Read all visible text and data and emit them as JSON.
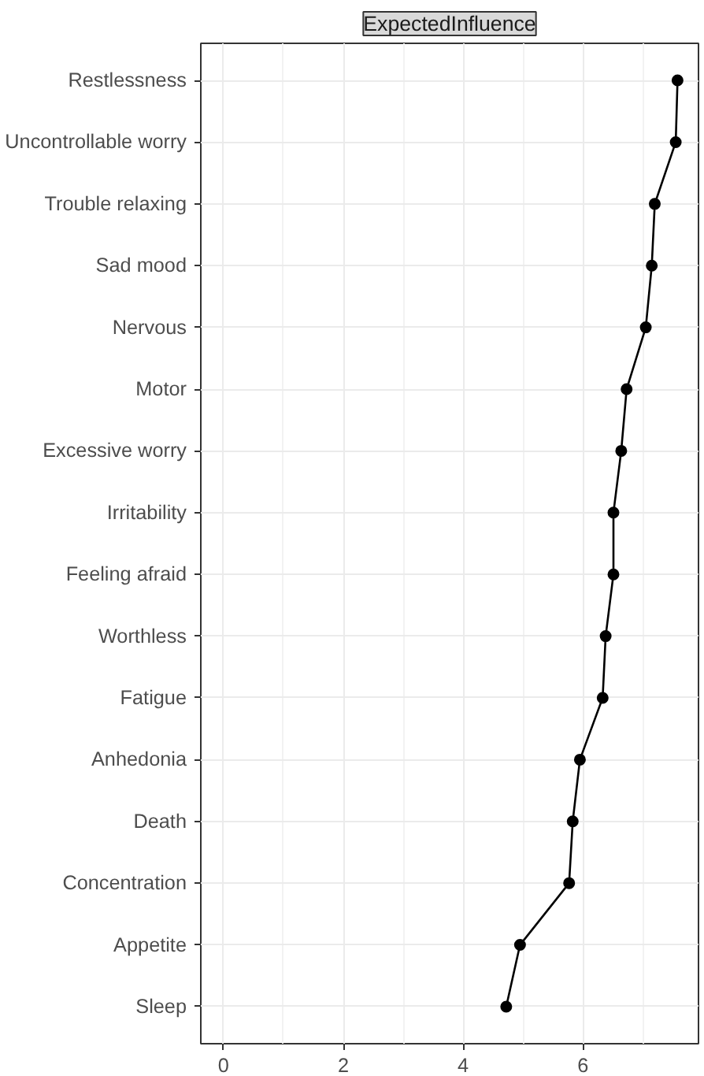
{
  "chart_data": {
    "type": "line",
    "title": "ExpectedInfluence",
    "orientation": "horizontal",
    "categories": [
      "Restlessness",
      "Uncontrollable worry",
      "Trouble relaxing",
      "Sad mood",
      "Nervous",
      "Motor",
      "Excessive worry",
      "Irritability",
      "Feeling afraid",
      "Worthless",
      "Fatigue",
      "Anhedonia",
      "Death",
      "Concentration",
      "Appetite",
      "Sleep"
    ],
    "series": [
      {
        "color": "#000000",
        "values": [
          7.58,
          7.55,
          7.2,
          7.15,
          7.05,
          6.73,
          6.64,
          6.51,
          6.51,
          6.38,
          6.33,
          5.95,
          5.83,
          5.77,
          4.95,
          4.72
        ]
      }
    ],
    "xlim": [
      -0.38,
      7.93
    ],
    "xticks": [
      0,
      2,
      4,
      6
    ],
    "grid": true,
    "marker": "circle",
    "line_style": "solid"
  }
}
